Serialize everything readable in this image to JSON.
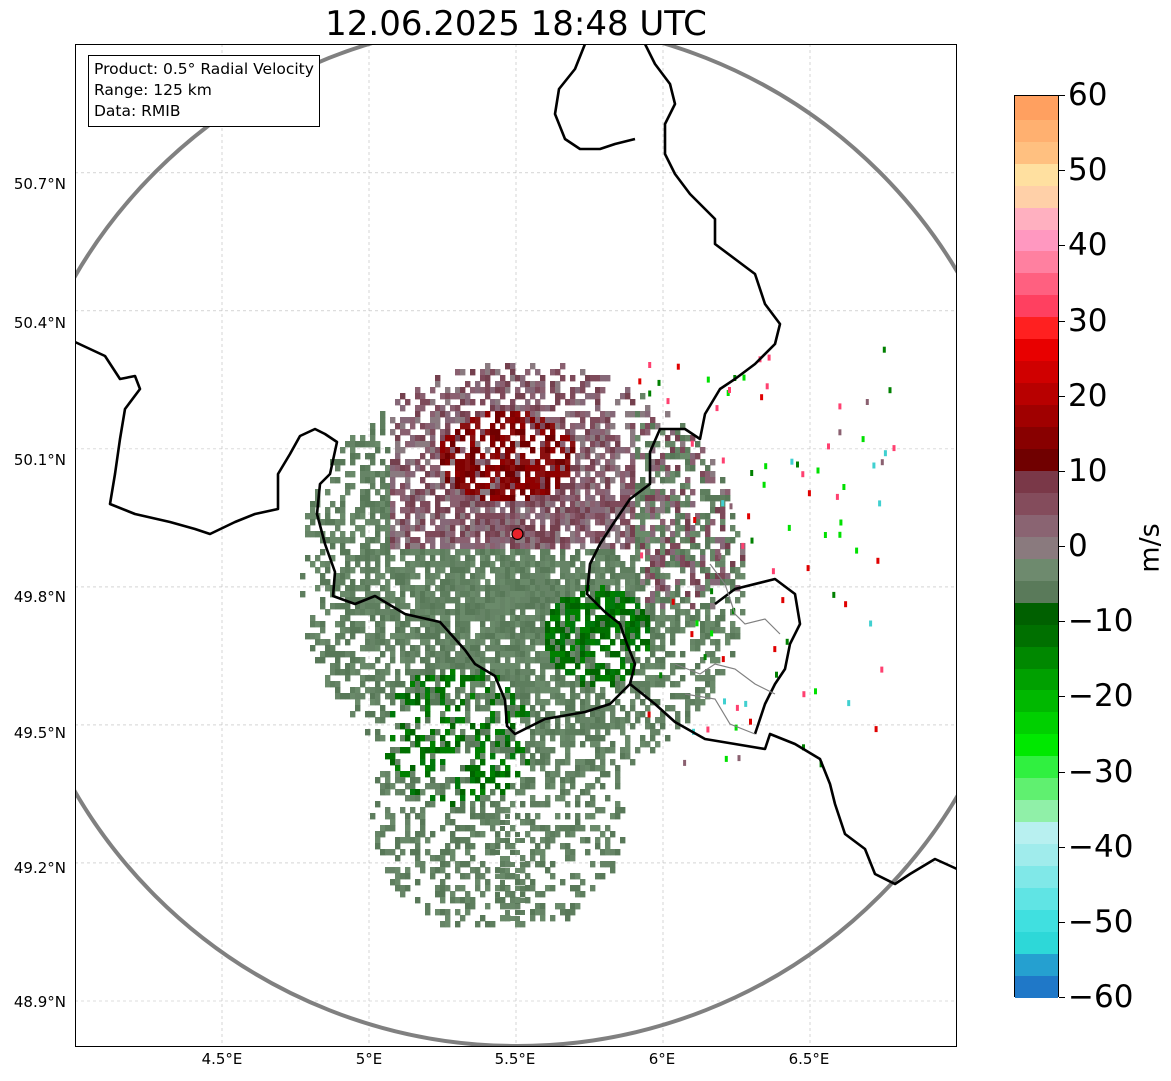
{
  "title": "12.06.2025 18:48 UTC",
  "info": {
    "product": "Product: 0.5° Radial Velocity",
    "range": "Range: 125 km",
    "data": "Data: RMIB"
  },
  "map": {
    "lon_range": [
      4.0,
      7.0
    ],
    "lat_range": [
      48.8,
      50.98
    ],
    "radar_site": {
      "lon": 5.505,
      "lat": 49.915
    },
    "range_ring_color": "#808080",
    "border_color": "#000000",
    "sub_border_color": "#808080",
    "x_ticks": [
      "4.5°E",
      "5°E",
      "5.5°E",
      "6°E",
      "6.5°E"
    ],
    "y_ticks": [
      "50.7°N",
      "50.4°N",
      "50.1°N",
      "49.8°N",
      "49.5°N",
      "49.2°N",
      "48.9°N"
    ]
  },
  "colorbar": {
    "label": "m/s",
    "ticks": [
      "60",
      "50",
      "40",
      "30",
      "20",
      "10",
      "0",
      "−10",
      "−20",
      "−30",
      "−40",
      "−50",
      "−60"
    ],
    "colors": [
      "#1f78c8",
      "#25a0d0",
      "#2dd8d8",
      "#40e0e0",
      "#60e4e4",
      "#80e8e8",
      "#a0ecec",
      "#b8f0f0",
      "#90f0a8",
      "#60f070",
      "#30f040",
      "#00e800",
      "#00d000",
      "#00b800",
      "#00a000",
      "#008800",
      "#007000",
      "#006000",
      "#5a7a5a",
      "#6e8a6e",
      "#8a7a7e",
      "#8a6472",
      "#844c5c",
      "#7a3848",
      "#700000",
      "#880000",
      "#a00000",
      "#b80000",
      "#d00000",
      "#e80000",
      "#ff2020",
      "#ff4060",
      "#ff6080",
      "#ff80a0",
      "#ff98c0",
      "#ffb0c0",
      "#ffd0a8",
      "#ffe0a0",
      "#ffc080",
      "#ffb070",
      "#ffa060"
    ]
  }
}
